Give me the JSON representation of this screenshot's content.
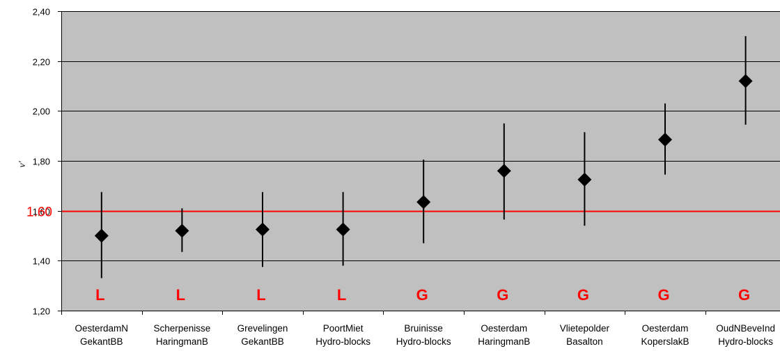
{
  "chart_data": {
    "type": "scatter",
    "ylabel": "v'",
    "ylim": [
      1.2,
      2.4
    ],
    "yticks": [
      "1,20",
      "1,40",
      "1,60",
      "1,80",
      "2,00",
      "2,20",
      "2,40"
    ],
    "grid": true,
    "categories": [
      [
        "OesterdamN",
        "GekantBB"
      ],
      [
        "Scherpenisse",
        "HaringmanB"
      ],
      [
        "Grevelingen",
        "GekantBB"
      ],
      [
        "PoortMiet",
        "Hydro-blocks"
      ],
      [
        "Bruinisse",
        "Hydro-blocks"
      ],
      [
        "Oesterdam",
        "HaringmanB"
      ],
      [
        "Vlietepolder",
        "Basalton"
      ],
      [
        "Oesterdam",
        "KoperslakB"
      ],
      [
        "OudNBeveInd",
        "Hydro-blocks"
      ]
    ],
    "values": [
      1.5,
      1.52,
      1.525,
      1.525,
      1.635,
      1.76,
      1.725,
      1.885,
      2.12
    ],
    "error_low": [
      1.33,
      1.435,
      1.375,
      1.38,
      1.47,
      1.565,
      1.54,
      1.745,
      1.945
    ],
    "error_high": [
      1.675,
      1.61,
      1.675,
      1.675,
      1.805,
      1.95,
      1.915,
      2.03,
      2.3
    ],
    "group_labels": [
      "L",
      "L",
      "L",
      "L",
      "G",
      "G",
      "G",
      "G",
      "G"
    ],
    "reference_line": {
      "value": 1.6,
      "label": "1.60",
      "color": "#ff0000"
    },
    "colors": {
      "plot_background": "#c0c0c0",
      "gridline": "#000000",
      "marker": "#000000",
      "reference": "#ff0000",
      "group_label": "#ff0000"
    }
  }
}
